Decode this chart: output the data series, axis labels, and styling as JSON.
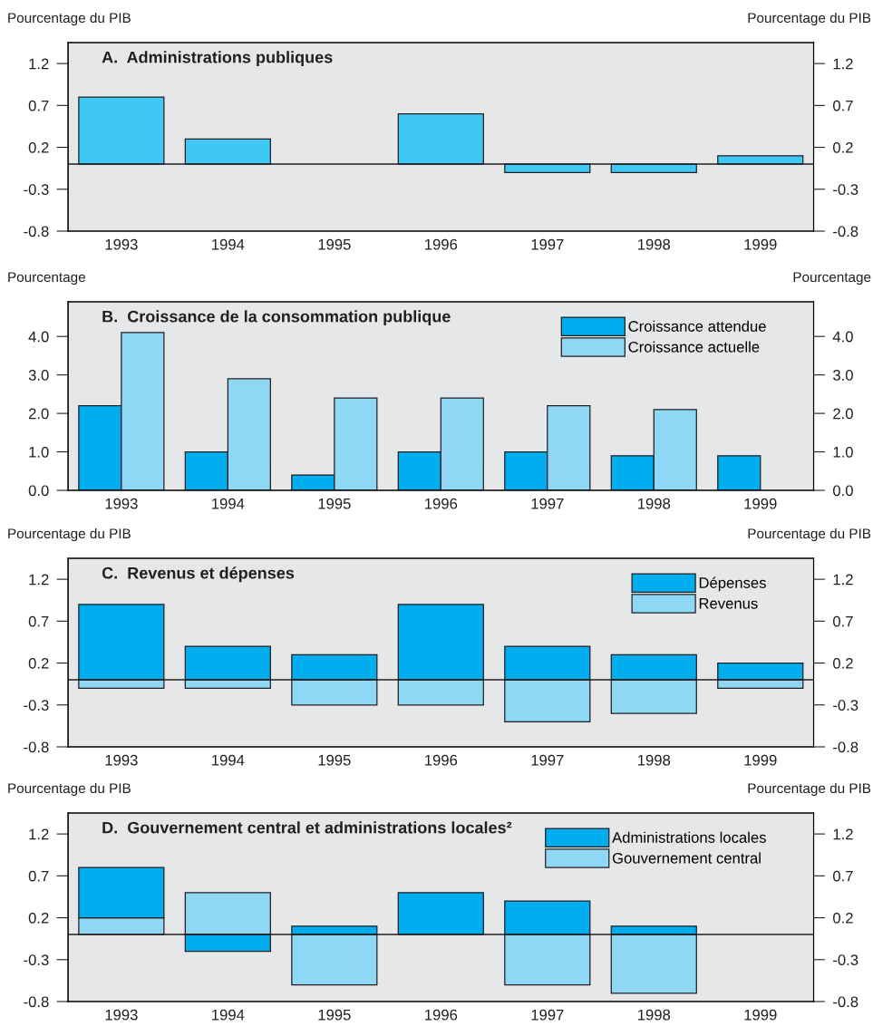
{
  "chart_data": [
    {
      "type": "bar",
      "title": "A.  Administrations publiques",
      "ylabel": "Pourcentage du PIB",
      "y2label": "Pourcentage du PIB",
      "categories": [
        "1993",
        "1994",
        "1995",
        "1996",
        "1997",
        "1998",
        "1999"
      ],
      "series": [
        {
          "color": "#40c8f4",
          "values": [
            0.8,
            0.3,
            null,
            0.6,
            -0.1,
            -0.1,
            0.1
          ]
        }
      ],
      "ylim": [
        -0.8,
        1.45
      ],
      "yticks": [
        -0.8,
        -0.3,
        0.2,
        0.7,
        1.2
      ],
      "y2lim": [
        -0.8,
        1.45
      ],
      "y2ticks": [
        -0.8,
        -0.3,
        0.2,
        0.7,
        1.2
      ],
      "ref_lines": [
        {
          "axis": "y",
          "value": 0,
          "color": "#231f20"
        }
      ],
      "grid": false,
      "legend": false
    },
    {
      "type": "bar",
      "title": "B.  Croissance de la consommation publique",
      "ylabel": "Pourcentage",
      "y2label": "Pourcentage",
      "categories": [
        "1993",
        "1994",
        "1995",
        "1996",
        "1997",
        "1998",
        "1999"
      ],
      "series": [
        {
          "name": "Croissance attendue",
          "color": "#00aeef",
          "values": [
            2.2,
            1.0,
            0.4,
            1.0,
            1.0,
            0.9,
            0.9
          ]
        },
        {
          "name": "Croissance actuelle",
          "color": "#8fd8f5",
          "values": [
            4.1,
            2.9,
            2.4,
            2.4,
            2.2,
            2.1,
            null
          ]
        }
      ],
      "ylim": [
        0,
        4.9
      ],
      "yticks": [
        {
          "value": 0,
          "label": "0.0"
        },
        {
          "value": 1,
          "label": "1.0"
        },
        {
          "value": 2,
          "label": "2.0"
        },
        {
          "value": 3,
          "label": "3.0"
        },
        {
          "value": 4,
          "label": "4.0"
        }
      ],
      "y2lim": [
        0,
        4.9
      ],
      "y2ticks": [
        {
          "value": 0,
          "label": "0.0"
        },
        {
          "value": 1,
          "label": "1.0"
        },
        {
          "value": 2,
          "label": "2.0"
        },
        {
          "value": 3,
          "label": "3.0"
        },
        {
          "value": 4,
          "label": "4.0"
        }
      ],
      "grid": false,
      "legend": "top right"
    },
    {
      "type": "bar",
      "stacked": true,
      "title": "C.  Revenus et dépenses",
      "ylabel": "Pourcentage du PIB",
      "y2label": "Pourcentage du PIB",
      "categories": [
        "1993",
        "1994",
        "1995",
        "1996",
        "1997",
        "1998",
        "1999"
      ],
      "series": [
        {
          "name": "Dépenses",
          "color": "#00aeef",
          "values": [
            0.9,
            0.4,
            0.3,
            0.9,
            0.4,
            0.3,
            0.2
          ]
        },
        {
          "name": "Revenus",
          "color": "#8fd8f5",
          "values": [
            -0.1,
            -0.1,
            -0.3,
            -0.3,
            -0.5,
            -0.4,
            -0.1
          ]
        }
      ],
      "ylim": [
        -0.8,
        1.45
      ],
      "yticks": [
        -0.8,
        -0.3,
        0.2,
        0.7,
        1.2
      ],
      "y2lim": [
        -0.8,
        1.45
      ],
      "y2ticks": [
        -0.8,
        -0.3,
        0.2,
        0.7,
        1.2
      ],
      "ref_lines": [
        {
          "axis": "y",
          "value": 0,
          "color": "#231f20"
        }
      ],
      "grid": false,
      "legend": "top right"
    },
    {
      "type": "bar",
      "stacked": true,
      "title": "D.  Gouvernement central et administrations locales²",
      "ylabel": "Pourcentage du PIB",
      "y2label": "Pourcentage du PIB",
      "categories": [
        "1993",
        "1994",
        "1995",
        "1996",
        "1997",
        "1998",
        "1999"
      ],
      "series": [
        {
          "name": "Gouvernement central",
          "color": "#8fd8f5",
          "values": [
            0.2,
            0.5,
            -0.6,
            null,
            -0.6,
            -0.7,
            null
          ]
        },
        {
          "name": "Administrations locales",
          "color": "#00aeef",
          "values": [
            0.6,
            -0.2,
            0.1,
            0.5,
            0.4,
            0.1,
            null
          ]
        }
      ],
      "ylim": [
        -0.8,
        1.45
      ],
      "yticks": [
        -0.8,
        -0.3,
        0.2,
        0.7,
        1.2
      ],
      "y2lim": [
        -0.8,
        1.45
      ],
      "y2ticks": [
        -0.8,
        -0.3,
        0.2,
        0.7,
        1.2
      ],
      "ref_lines": [
        {
          "axis": "y",
          "value": 0,
          "color": "#231f20"
        }
      ],
      "grid": false,
      "legend": "top right"
    }
  ]
}
